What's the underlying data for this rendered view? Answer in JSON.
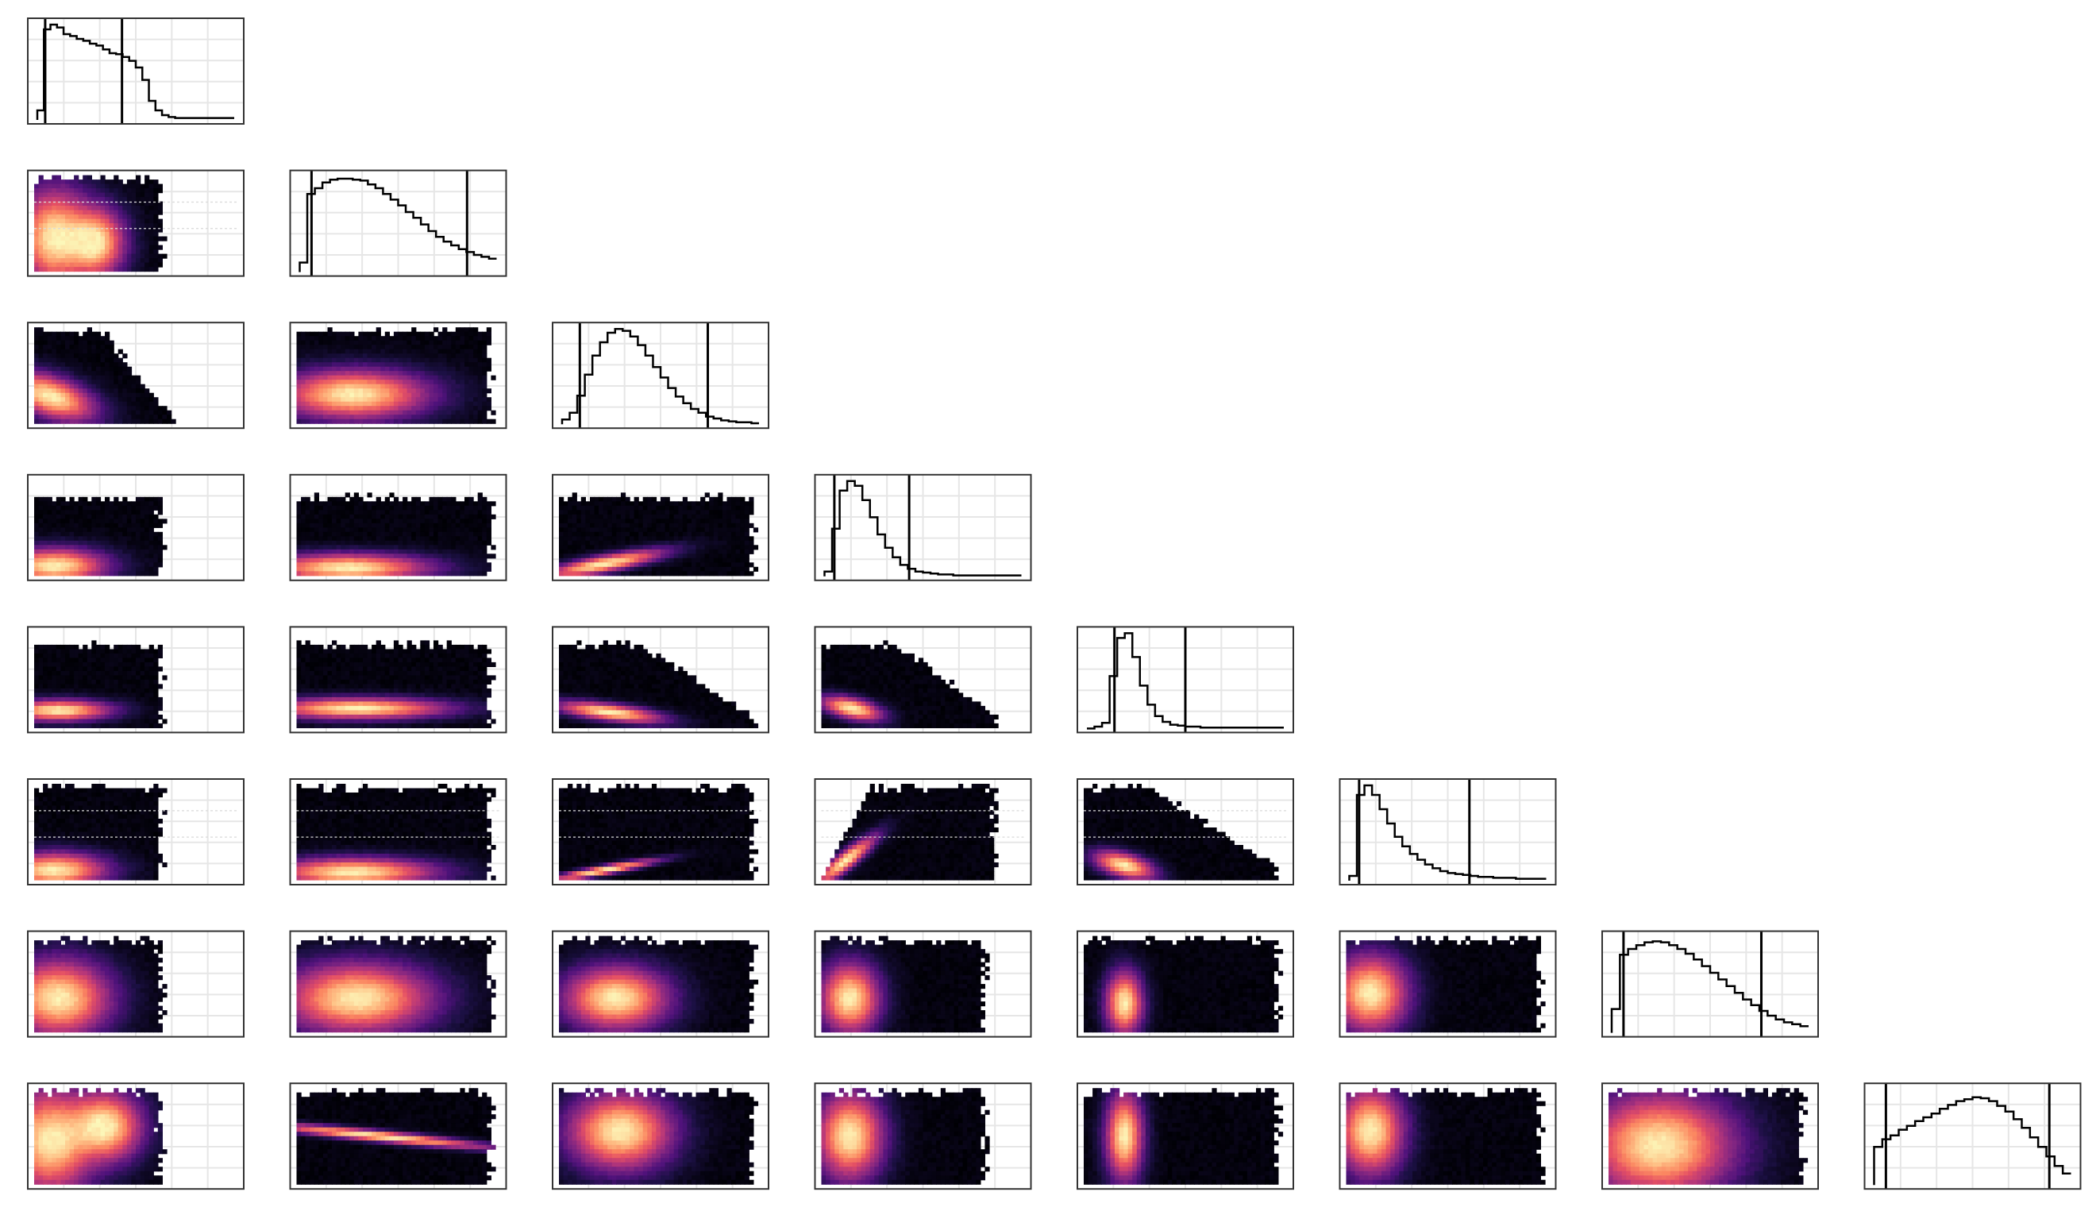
{
  "chart_data": {
    "type": "corner",
    "n_params": 8,
    "diagonal_type": "step-histogram",
    "offdiagonal_type": "hexbin-density",
    "colormap": [
      "#000004",
      "#1c1044",
      "#4f127b",
      "#812581",
      "#b5367a",
      "#e55064",
      "#fb8761",
      "#fec287",
      "#fcfdbf"
    ],
    "grid": true,
    "axis_labels_shown": false,
    "histograms": [
      {
        "param": 1,
        "values": [
          0.1,
          0.95,
          1.0,
          0.97,
          0.9,
          0.88,
          0.85,
          0.83,
          0.8,
          0.78,
          0.74,
          0.7,
          0.69,
          0.66,
          0.62,
          0.55,
          0.42,
          0.2,
          0.1,
          0.05,
          0.03,
          0.02,
          0.02,
          0.02,
          0.02,
          0.02,
          0.02,
          0.02,
          0.02,
          0.02
        ],
        "markers": [
          0.04,
          0.43
        ]
      },
      {
        "param": 2,
        "values": [
          0.1,
          0.82,
          0.88,
          0.94,
          0.97,
          0.98,
          0.98,
          0.97,
          0.96,
          0.92,
          0.88,
          0.82,
          0.76,
          0.7,
          0.63,
          0.57,
          0.5,
          0.43,
          0.37,
          0.32,
          0.28,
          0.24,
          0.21,
          0.18,
          0.16,
          0.14
        ],
        "markers": [
          0.06,
          0.85
        ]
      },
      {
        "param": 3,
        "values": [
          0.05,
          0.12,
          0.3,
          0.52,
          0.72,
          0.86,
          0.96,
          1.0,
          0.98,
          0.92,
          0.83,
          0.72,
          0.6,
          0.49,
          0.38,
          0.29,
          0.22,
          0.16,
          0.12,
          0.08,
          0.06,
          0.04,
          0.03,
          0.02,
          0.02,
          0.01
        ],
        "markers": [
          0.09,
          0.74
        ]
      },
      {
        "param": 4,
        "values": [
          0.05,
          0.5,
          0.9,
          1.0,
          0.95,
          0.8,
          0.62,
          0.44,
          0.3,
          0.2,
          0.12,
          0.08,
          0.05,
          0.04,
          0.03,
          0.02,
          0.02,
          0.01,
          0.01,
          0.01,
          0.01,
          0.01,
          0.01,
          0.01,
          0.01,
          0.01
        ],
        "markers": [
          0.05,
          0.43
        ]
      },
      {
        "param": 5,
        "values": [
          0.0,
          0.02,
          0.06,
          0.55,
          0.95,
          1.0,
          0.75,
          0.45,
          0.25,
          0.13,
          0.07,
          0.04,
          0.03,
          0.02,
          0.02,
          0.01,
          0.01,
          0.01,
          0.01,
          0.01,
          0.01,
          0.01,
          0.01,
          0.01,
          0.01,
          0.01
        ],
        "markers": [
          0.14,
          0.5
        ]
      },
      {
        "param": 6,
        "values": [
          0.05,
          0.9,
          1.0,
          0.9,
          0.75,
          0.6,
          0.46,
          0.36,
          0.28,
          0.22,
          0.17,
          0.13,
          0.1,
          0.08,
          0.07,
          0.06,
          0.05,
          0.04,
          0.04,
          0.03,
          0.03,
          0.03,
          0.02,
          0.02,
          0.02,
          0.02
        ],
        "markers": [
          0.05,
          0.61
        ]
      },
      {
        "param": 7,
        "values": [
          0.25,
          0.82,
          0.88,
          0.92,
          0.95,
          0.96,
          0.95,
          0.92,
          0.88,
          0.83,
          0.77,
          0.7,
          0.63,
          0.56,
          0.49,
          0.42,
          0.35,
          0.29,
          0.23,
          0.18,
          0.14,
          0.11,
          0.09,
          0.07
        ],
        "markers": [
          0.06,
          0.76
        ]
      },
      {
        "param": 8,
        "values": [
          0.4,
          0.48,
          0.52,
          0.58,
          0.62,
          0.67,
          0.71,
          0.75,
          0.8,
          0.84,
          0.88,
          0.9,
          0.92,
          0.91,
          0.88,
          0.83,
          0.77,
          0.69,
          0.6,
          0.5,
          0.4,
          0.3,
          0.2,
          0.12
        ],
        "markers": [
          0.06,
          0.89
        ]
      }
    ]
  }
}
